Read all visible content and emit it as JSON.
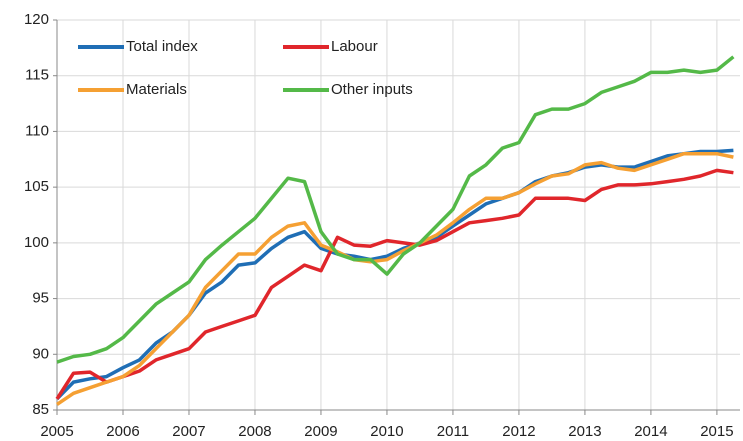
{
  "chart_data": {
    "type": "line",
    "x": [
      2005,
      2005.25,
      2005.5,
      2005.75,
      2006,
      2006.25,
      2006.5,
      2006.75,
      2007,
      2007.25,
      2007.5,
      2007.75,
      2008,
      2008.25,
      2008.5,
      2008.75,
      2009,
      2009.25,
      2009.5,
      2009.75,
      2010,
      2010.25,
      2010.5,
      2010.75,
      2011,
      2011.25,
      2011.5,
      2011.75,
      2012,
      2012.25,
      2012.5,
      2012.75,
      2013,
      2013.25,
      2013.5,
      2013.75,
      2014,
      2014.25,
      2014.5,
      2014.75,
      2015,
      2015.25
    ],
    "series": [
      {
        "name": "Total index",
        "color": "#1f6eb5",
        "values": [
          86,
          87.5,
          87.8,
          88,
          88.8,
          89.5,
          91,
          92,
          93.5,
          95.5,
          96.5,
          98,
          98.2,
          99.5,
          100.5,
          101,
          99.5,
          99,
          98.8,
          98.5,
          98.8,
          99.5,
          100,
          100.5,
          101.5,
          102.5,
          103.5,
          104,
          104.5,
          105.5,
          106,
          106.3,
          106.8,
          107,
          106.8,
          106.8,
          107.3,
          107.8,
          108,
          108.2,
          108.2,
          108.3
        ]
      },
      {
        "name": "Labour",
        "color": "#e0262b",
        "values": [
          86,
          88.3,
          88.4,
          87.5,
          88,
          88.5,
          89.5,
          90,
          90.5,
          92,
          92.5,
          93,
          93.5,
          96,
          97,
          98,
          97.5,
          100.5,
          99.8,
          99.7,
          100.2,
          100,
          99.8,
          100.2,
          101,
          101.8,
          102,
          102.2,
          102.5,
          104,
          104,
          104,
          103.8,
          104.8,
          105.2,
          105.2,
          105.3,
          105.5,
          105.7,
          106,
          106.5,
          106.3
        ]
      },
      {
        "name": "Materials",
        "color": "#f5a033",
        "values": [
          85.5,
          86.5,
          87,
          87.5,
          88,
          89,
          90.5,
          92,
          93.5,
          96,
          97.5,
          99,
          99,
          100.5,
          101.5,
          101.8,
          99.8,
          99.2,
          98.5,
          98.3,
          98.5,
          99.3,
          100,
          100.7,
          101.8,
          103,
          104,
          104,
          104.5,
          105.3,
          106,
          106.2,
          107,
          107.2,
          106.7,
          106.5,
          107,
          107.5,
          108,
          108,
          108,
          107.7
        ]
      },
      {
        "name": "Other inputs",
        "color": "#54b948",
        "values": [
          89.3,
          89.8,
          90,
          90.5,
          91.5,
          93,
          94.5,
          95.5,
          96.5,
          98.5,
          99.8,
          101,
          102.2,
          104,
          105.8,
          105.5,
          101,
          99,
          98.5,
          98.5,
          97.2,
          99,
          100,
          101.5,
          103,
          106,
          107,
          108.5,
          109,
          111.5,
          112,
          112,
          112.5,
          113.5,
          114,
          114.5,
          115.3,
          115.3,
          115.5,
          115.3,
          115.5,
          116.7
        ]
      }
    ],
    "xlim": [
      2005,
      2015.35
    ],
    "xticks": [
      2005,
      2006,
      2007,
      2008,
      2009,
      2010,
      2011,
      2012,
      2013,
      2014,
      2015
    ],
    "ylim": [
      85,
      120
    ],
    "yticks": [
      85,
      90,
      95,
      100,
      105,
      110,
      115,
      120
    ],
    "grid": true
  }
}
